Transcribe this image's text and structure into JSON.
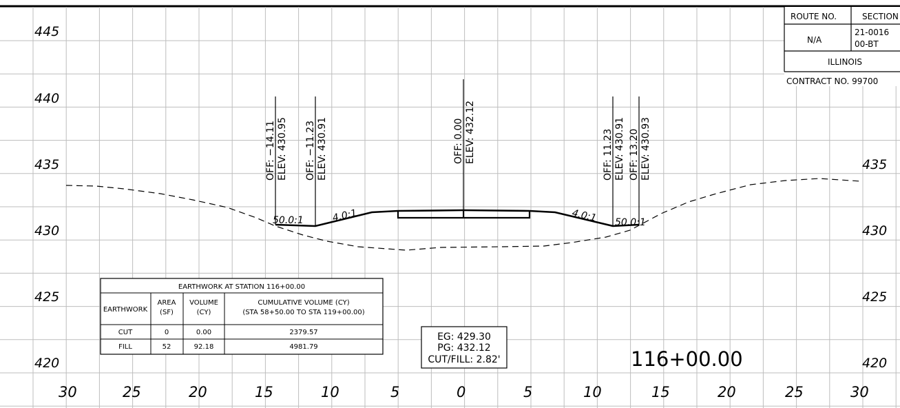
{
  "elevation_labels_left": [
    "445",
    "440",
    "435",
    "430",
    "425",
    "420"
  ],
  "elevation_labels_right": [
    "435",
    "430",
    "425",
    "420"
  ],
  "offset_labels": [
    "30",
    "25",
    "20",
    "15",
    "10",
    "5",
    "0",
    "5",
    "10",
    "15",
    "20",
    "25",
    "30"
  ],
  "callouts": [
    {
      "off": "OFF: −14.11",
      "elev": "ELEV: 430.95"
    },
    {
      "off": "OFF: −11.23",
      "elev": "ELEV: 430.91"
    },
    {
      "off": "OFF: 0.00",
      "elev": "ELEV: 432.12"
    },
    {
      "off": "OFF: 11.23",
      "elev": "ELEV: 430.91"
    },
    {
      "off": "OFF: 13.20",
      "elev": "ELEV: 430.93"
    }
  ],
  "slope_labels": {
    "left_outer": "50.0:1",
    "left_inner": "4.0:1",
    "right_inner": "4.0:1",
    "right_outer": "50.0:1"
  },
  "title_block": {
    "route_header": "ROUTE NO.",
    "section_header": "SECTION",
    "route_value": "N/A",
    "section_line1": "21-0016",
    "section_line2": "00-BT",
    "state": "ILLINOIS",
    "contract": "CONTRACT NO. 99700"
  },
  "earthwork_table": {
    "title": "EARTHWORK AT STATION 116+00.00",
    "headers": [
      "EARTHWORK",
      "AREA (SF)",
      "VOLUME (CY)",
      "CUMULATIVE VOLUME (CY)"
    ],
    "header_sub": [
      "",
      "",
      "",
      "(STA 58+50.00 TO STA 119+00.00)"
    ],
    "rows": [
      [
        "CUT",
        "0",
        "0.00",
        "2379.57"
      ],
      [
        "FILL",
        "52",
        "92.18",
        "4981.79"
      ]
    ]
  },
  "grade_box": {
    "eg": "EG: 429.30",
    "pg": "PG: 432.12",
    "cutfill": "CUT/FILL: 2.82'"
  },
  "station_label": "116+00.00"
}
